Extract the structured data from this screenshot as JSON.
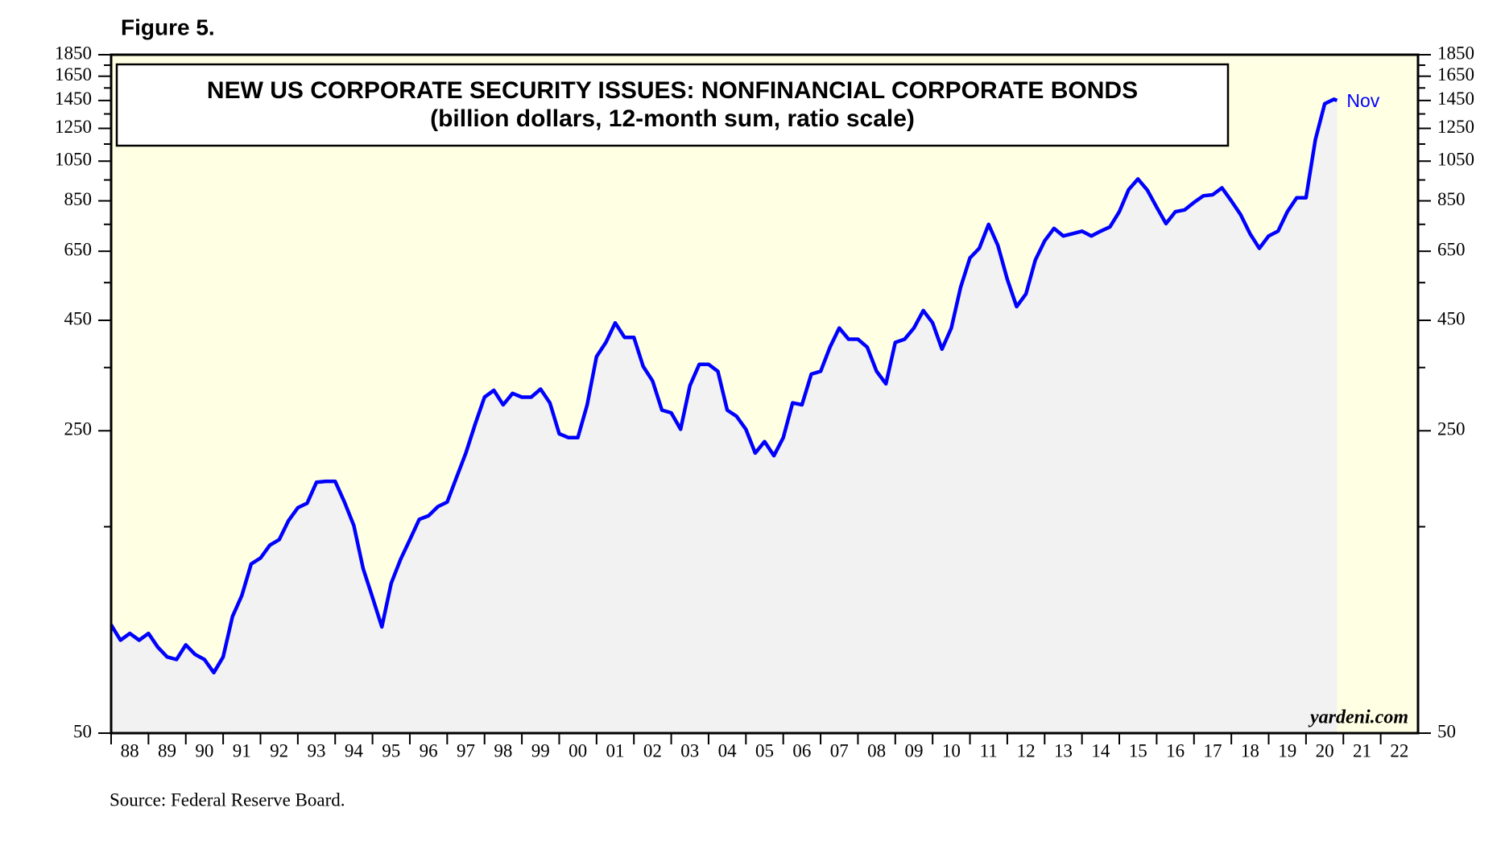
{
  "figure_label": "Figure 5.",
  "chart_data": {
    "type": "line",
    "title": "NEW US CORPORATE SECURITY ISSUES: NONFINANCIAL CORPORATE BONDS",
    "subtitle": "(billion dollars, 12-month sum, ratio scale)",
    "yscale": "log",
    "mirror_y_axis": true,
    "background": "#ffffe3",
    "area_color": "#f2f2f2",
    "xlim": [
      1988,
      2023
    ],
    "ylim": [
      50,
      1850
    ],
    "yticks": [
      50,
      250,
      450,
      650,
      850,
      1050,
      1250,
      1450,
      1650,
      1850
    ],
    "yticks_minor": [
      150,
      350,
      550,
      750,
      950,
      1150,
      1350,
      1550,
      1750
    ],
    "xticks": [
      {
        "value": 1988,
        "label": "88"
      },
      {
        "value": 1989,
        "label": "89"
      },
      {
        "value": 1990,
        "label": "90"
      },
      {
        "value": 1991,
        "label": "91"
      },
      {
        "value": 1992,
        "label": "92"
      },
      {
        "value": 1993,
        "label": "93"
      },
      {
        "value": 1994,
        "label": "94"
      },
      {
        "value": 1995,
        "label": "95"
      },
      {
        "value": 1996,
        "label": "96"
      },
      {
        "value": 1997,
        "label": "97"
      },
      {
        "value": 1998,
        "label": "98"
      },
      {
        "value": 1999,
        "label": "99"
      },
      {
        "value": 2000,
        "label": "00"
      },
      {
        "value": 2001,
        "label": "01"
      },
      {
        "value": 2002,
        "label": "02"
      },
      {
        "value": 2003,
        "label": "03"
      },
      {
        "value": 2004,
        "label": "04"
      },
      {
        "value": 2005,
        "label": "05"
      },
      {
        "value": 2006,
        "label": "06"
      },
      {
        "value": 2007,
        "label": "07"
      },
      {
        "value": 2008,
        "label": "08"
      },
      {
        "value": 2009,
        "label": "09"
      },
      {
        "value": 2010,
        "label": "10"
      },
      {
        "value": 2011,
        "label": "11"
      },
      {
        "value": 2012,
        "label": "12"
      },
      {
        "value": 2013,
        "label": "13"
      },
      {
        "value": 2014,
        "label": "14"
      },
      {
        "value": 2015,
        "label": "15"
      },
      {
        "value": 2016,
        "label": "16"
      },
      {
        "value": 2017,
        "label": "17"
      },
      {
        "value": 2018,
        "label": "18"
      },
      {
        "value": 2019,
        "label": "19"
      },
      {
        "value": 2020,
        "label": "20"
      },
      {
        "value": 2021,
        "label": "21"
      },
      {
        "value": 2022,
        "label": "22"
      }
    ],
    "x": [
      1988,
      1988.25,
      1988.5,
      1988.75,
      1989,
      1989.25,
      1989.5,
      1989.75,
      1990,
      1990.25,
      1990.5,
      1990.75,
      1991,
      1991.25,
      1991.5,
      1991.75,
      1992,
      1992.25,
      1992.5,
      1992.75,
      1993,
      1993.25,
      1993.5,
      1993.75,
      1994,
      1994.25,
      1994.5,
      1994.75,
      1995,
      1995.25,
      1995.5,
      1995.75,
      1996,
      1996.25,
      1996.5,
      1996.75,
      1997,
      1997.25,
      1997.5,
      1997.75,
      1998,
      1998.25,
      1998.5,
      1998.75,
      1999,
      1999.25,
      1999.5,
      1999.75,
      2000,
      2000.25,
      2000.5,
      2000.75,
      2001,
      2001.25,
      2001.5,
      2001.75,
      2002,
      2002.25,
      2002.5,
      2002.75,
      2003,
      2003.25,
      2003.5,
      2003.75,
      2004,
      2004.25,
      2004.5,
      2004.75,
      2005,
      2005.25,
      2005.5,
      2005.75,
      2006,
      2006.25,
      2006.5,
      2006.75,
      2007,
      2007.25,
      2007.5,
      2007.75,
      2008,
      2008.25,
      2008.5,
      2008.75,
      2009,
      2009.25,
      2009.5,
      2009.75,
      2010,
      2010.25,
      2010.5,
      2010.75,
      2011,
      2011.25,
      2011.5,
      2011.75,
      2012,
      2012.25,
      2012.5,
      2012.75,
      2013,
      2013.25,
      2013.5,
      2013.75,
      2014,
      2014.25,
      2014.5,
      2014.75,
      2015,
      2015.25,
      2015.5,
      2015.75,
      2016,
      2016.25,
      2016.5,
      2016.75,
      2017,
      2017.25,
      2017.5,
      2017.75,
      2018,
      2018.25,
      2018.5,
      2018.75,
      2019,
      2019.25,
      2019.5,
      2019.75,
      2020,
      2020.25,
      2020.5,
      2020.75,
      2020.83
    ],
    "series": [
      {
        "name": "Nonfinancial corporate bonds",
        "color": "#0000ff",
        "values": [
          89,
          82,
          85,
          82,
          85,
          79,
          75,
          74,
          80,
          76,
          74,
          69,
          75,
          93,
          104,
          123,
          127,
          136,
          140,
          155,
          166,
          170,
          190,
          191,
          191,
          171,
          151,
          120,
          103,
          88,
          111,
          126,
          140,
          156,
          159,
          167,
          171,
          195,
          222,
          259,
          299,
          310,
          287,
          305,
          299,
          299,
          312,
          290,
          246,
          241,
          241,
          287,
          371,
          400,
          444,
          411,
          411,
          352,
          326,
          279,
          275,
          252,
          318,
          356,
          356,
          343,
          279,
          270,
          252,
          222,
          236,
          219,
          241,
          290,
          287,
          338,
          343,
          390,
          432,
          407,
          407,
          390,
          343,
          321,
          400,
          407,
          432,
          474,
          444,
          386,
          432,
          537,
          627,
          660,
          750,
          670,
          560,
          484,
          518,
          620,
          687,
          734,
          705,
          714,
          723,
          705,
          723,
          740,
          802,
          902,
          955,
          900,
          822,
          753,
          802,
          810,
          843,
          873,
          878,
          911,
          850,
          790,
          714,
          660,
          705,
          723,
          802,
          864,
          864,
          1177,
          1425,
          1460,
          1450
        ]
      }
    ],
    "end_label": "Nov",
    "watermark": "yardeni.com",
    "source": "Source: Federal Reserve Board."
  }
}
